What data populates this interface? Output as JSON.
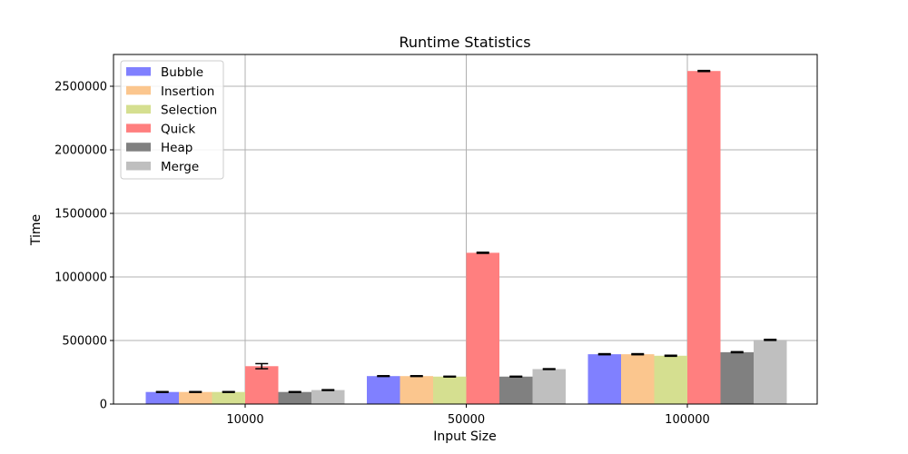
{
  "chart_data": {
    "type": "bar",
    "title": "Runtime Statistics",
    "xlabel": "Input Size",
    "ylabel": "Time",
    "categories": [
      "10000",
      "50000",
      "100000"
    ],
    "ylim": [
      0,
      2750000
    ],
    "yticks": [
      0,
      500000,
      1000000,
      1500000,
      2000000,
      2500000
    ],
    "ytick_labels": [
      "0",
      "500000",
      "1000000",
      "1500000",
      "2000000",
      "2500000"
    ],
    "grid": true,
    "legend_position": "top-left",
    "error_bars": true,
    "series": [
      {
        "name": "Bubble",
        "color": "#8080ff",
        "values": [
          95000,
          220000,
          392000
        ],
        "errors": [
          3000,
          3000,
          4000
        ]
      },
      {
        "name": "Insertion",
        "color": "#fbc68e",
        "values": [
          95000,
          220000,
          392000
        ],
        "errors": [
          3000,
          3000,
          4000
        ]
      },
      {
        "name": "Selection",
        "color": "#d5df90",
        "values": [
          95000,
          216000,
          380000
        ],
        "errors": [
          3000,
          3000,
          4000
        ]
      },
      {
        "name": "Quick",
        "color": "#ff7f7f",
        "values": [
          298000,
          1190000,
          2620000
        ],
        "errors": [
          20000,
          4000,
          4000
        ]
      },
      {
        "name": "Heap",
        "color": "#808080",
        "values": [
          95000,
          216000,
          408000
        ],
        "errors": [
          3000,
          3000,
          4000
        ]
      },
      {
        "name": "Merge",
        "color": "#bfbfbf",
        "values": [
          110000,
          275000,
          505000
        ],
        "errors": [
          3000,
          3000,
          4000
        ]
      }
    ]
  }
}
